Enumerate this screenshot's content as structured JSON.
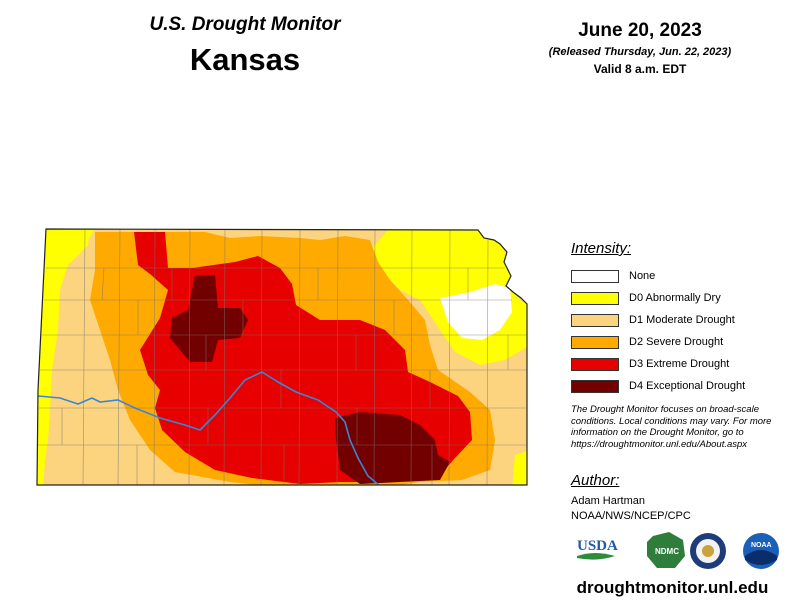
{
  "header": {
    "subtitle": "U.S. Drought Monitor",
    "state": "Kansas"
  },
  "date_block": {
    "map_date": "June 20, 2023",
    "released": "(Released Thursday, Jun. 22, 2023)",
    "valid": "Valid 8 a.m. EDT"
  },
  "legend": {
    "title": "Intensity:",
    "items": [
      {
        "label": "None",
        "color": "#ffffff"
      },
      {
        "label": "D0 Abnormally Dry",
        "color": "#ffff00"
      },
      {
        "label": "D1 Moderate Drought",
        "color": "#fcd37f"
      },
      {
        "label": "D2 Severe Drought",
        "color": "#ffaa00"
      },
      {
        "label": "D3 Extreme Drought",
        "color": "#e60000"
      },
      {
        "label": "D4 Exceptional Drought",
        "color": "#730000"
      }
    ]
  },
  "note": "The Drought Monitor focuses on broad-scale conditions. Local conditions may vary. For more information on the Drought Monitor, go to https://droughtmonitor.unl.edu/About.aspx",
  "author": {
    "title": "Author:",
    "name": "Adam Hartman",
    "org": "NOAA/NWS/NCEP/CPC"
  },
  "logos": [
    {
      "name": "usda-logo",
      "text": "USDA"
    },
    {
      "name": "ndmc-logo",
      "text": "NDMC"
    },
    {
      "name": "doc-seal",
      "text": ""
    },
    {
      "name": "noaa-logo",
      "text": "NOAA"
    }
  ],
  "colors": {
    "river": "#3a86d6",
    "county_lines": "#777777"
  },
  "footer": {
    "site": "droughtmonitor.unl.edu"
  }
}
